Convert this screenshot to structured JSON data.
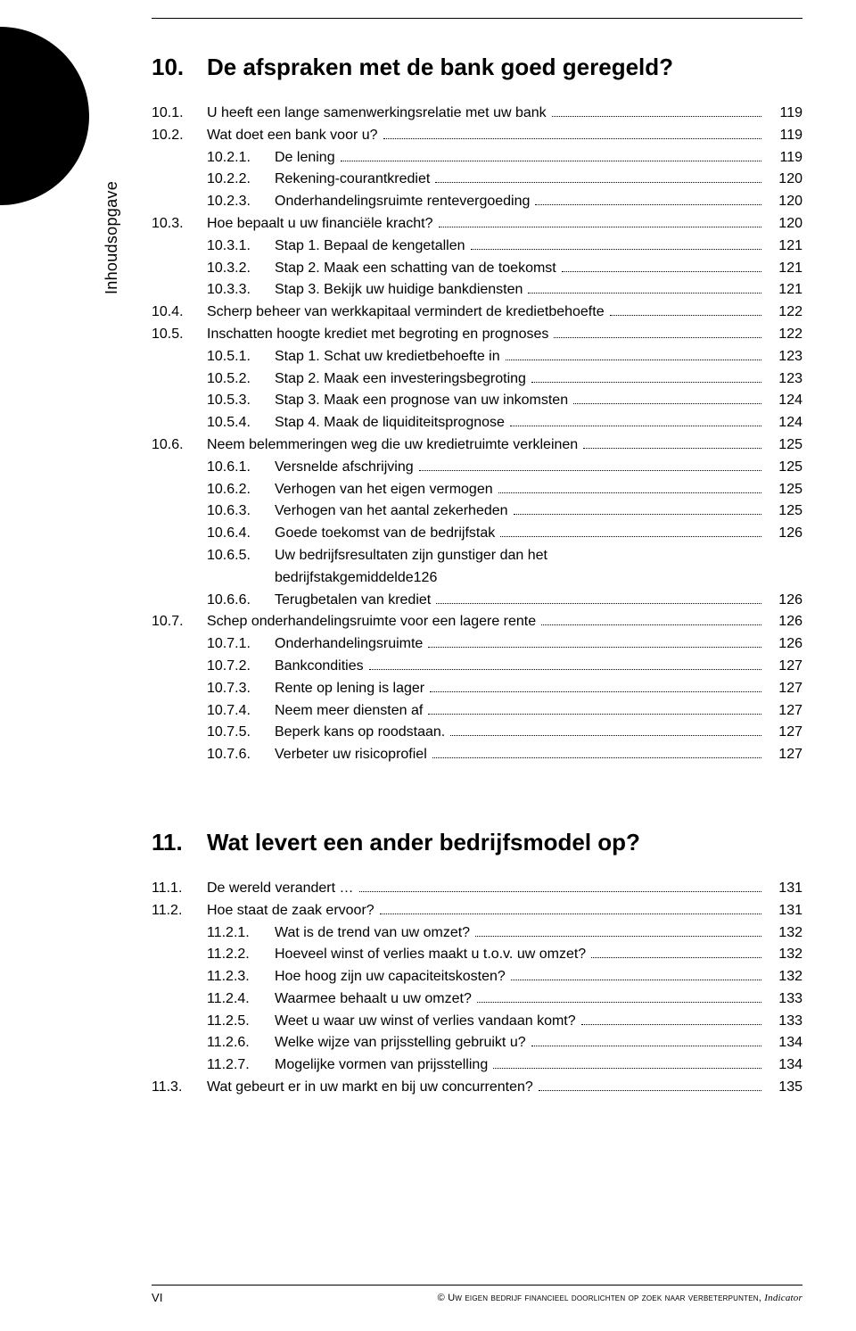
{
  "sideLabel": "Inhoudsopgave",
  "footer": {
    "pageNum": "VI",
    "copyright": "© Uw eigen bedrijf financieel doorlichten op zoek naar verbeterpunten,",
    "publisher": "Indicator"
  },
  "chapters": [
    {
      "num": "10.",
      "title": "De afspraken met de bank goed geregeld?",
      "entries": [
        {
          "lvl": 1,
          "num": "10.1.",
          "text": "U heeft een lange samenwerkingsrelatie met uw bank",
          "page": "119"
        },
        {
          "lvl": 1,
          "num": "10.2.",
          "text": "Wat doet een bank voor u?",
          "page": "119"
        },
        {
          "lvl": 2,
          "num": "10.2.1.",
          "text": "De lening",
          "page": "119"
        },
        {
          "lvl": 2,
          "num": "10.2.2.",
          "text": "Rekening-courantkrediet",
          "page": "120"
        },
        {
          "lvl": 2,
          "num": "10.2.3.",
          "text": "Onderhandelingsruimte rentevergoeding",
          "page": "120"
        },
        {
          "lvl": 1,
          "num": "10.3.",
          "text": "Hoe bepaalt u uw financiële kracht?",
          "page": "120"
        },
        {
          "lvl": 2,
          "num": "10.3.1.",
          "text": "Stap 1. Bepaal de kengetallen",
          "page": "121"
        },
        {
          "lvl": 2,
          "num": "10.3.2.",
          "text": "Stap 2. Maak een schatting van de toekomst",
          "page": "121"
        },
        {
          "lvl": 2,
          "num": "10.3.3.",
          "text": "Stap 3. Bekijk uw huidige bankdiensten",
          "page": "121"
        },
        {
          "lvl": 1,
          "num": "10.4.",
          "text": "Scherp beheer van werkkapitaal vermindert de kredietbehoefte",
          "page": "122"
        },
        {
          "lvl": 1,
          "num": "10.5.",
          "text": "Inschatten hoogte krediet met begroting en prognoses",
          "page": "122"
        },
        {
          "lvl": 2,
          "num": "10.5.1.",
          "text": "Stap 1. Schat uw kredietbehoefte in",
          "page": "123"
        },
        {
          "lvl": 2,
          "num": "10.5.2.",
          "text": "Stap 2. Maak een investeringsbegroting",
          "page": "123"
        },
        {
          "lvl": 2,
          "num": "10.5.3.",
          "text": "Stap 3. Maak een prognose van uw inkomsten",
          "page": "124"
        },
        {
          "lvl": 2,
          "num": "10.5.4.",
          "text": "Stap 4. Maak de liquiditeitsprognose",
          "page": "124"
        },
        {
          "lvl": 1,
          "num": "10.6.",
          "text": "Neem belemmeringen weg die uw kredietruimte verkleinen",
          "page": "125"
        },
        {
          "lvl": 2,
          "num": "10.6.1.",
          "text": "Versnelde afschrijving",
          "page": "125"
        },
        {
          "lvl": 2,
          "num": "10.6.2.",
          "text": "Verhogen van het eigen vermogen",
          "page": "125"
        },
        {
          "lvl": 2,
          "num": "10.6.3.",
          "text": "Verhogen van het aantal zekerheden",
          "page": "125"
        },
        {
          "lvl": 2,
          "num": "10.6.4.",
          "text": "Goede toekomst van de bedrijfstak",
          "page": "126"
        },
        {
          "lvl": 2,
          "num": "10.6.5.",
          "text": "Uw bedrijfsresultaten zijn gunstiger dan het",
          "cont": "bedrijfstakgemiddelde",
          "page": "126"
        },
        {
          "lvl": 2,
          "num": "10.6.6.",
          "text": "Terugbetalen van krediet",
          "page": "126"
        },
        {
          "lvl": 1,
          "num": "10.7.",
          "text": "Schep onderhandelingsruimte voor een lagere rente",
          "page": "126"
        },
        {
          "lvl": 2,
          "num": "10.7.1.",
          "text": "Onderhandelingsruimte",
          "page": "126"
        },
        {
          "lvl": 2,
          "num": "10.7.2.",
          "text": "Bankcondities",
          "page": "127"
        },
        {
          "lvl": 2,
          "num": "10.7.3.",
          "text": "Rente op lening is lager",
          "page": "127"
        },
        {
          "lvl": 2,
          "num": "10.7.4.",
          "text": "Neem meer diensten af",
          "page": "127"
        },
        {
          "lvl": 2,
          "num": "10.7.5.",
          "text": "Beperk kans op roodstaan.",
          "page": "127"
        },
        {
          "lvl": 2,
          "num": "10.7.6.",
          "text": "Verbeter uw risicoprofiel",
          "page": "127"
        }
      ]
    },
    {
      "num": "11.",
      "title": "Wat levert een ander bedrijfsmodel op?",
      "entries": [
        {
          "lvl": 1,
          "num": "11.1.",
          "text": "De wereld verandert …",
          "page": "131"
        },
        {
          "lvl": 1,
          "num": "11.2.",
          "text": "Hoe staat de zaak ervoor?",
          "page": "131"
        },
        {
          "lvl": 2,
          "num": "11.2.1.",
          "text": "Wat is de trend van uw omzet?",
          "page": "132"
        },
        {
          "lvl": 2,
          "num": "11.2.2.",
          "text": "Hoeveel winst of verlies maakt u t.o.v. uw omzet?",
          "page": "132"
        },
        {
          "lvl": 2,
          "num": "11.2.3.",
          "text": "Hoe hoog zijn uw capaciteitskosten?",
          "page": "132"
        },
        {
          "lvl": 2,
          "num": "11.2.4.",
          "text": "Waarmee behaalt u uw omzet?",
          "page": "133"
        },
        {
          "lvl": 2,
          "num": "11.2.5.",
          "text": "Weet u waar uw winst of verlies vandaan komt?",
          "page": "133"
        },
        {
          "lvl": 2,
          "num": "11.2.6.",
          "text": "Welke wijze van prijsstelling gebruikt u?",
          "page": "134"
        },
        {
          "lvl": 2,
          "num": "11.2.7.",
          "text": "Mogelijke vormen van prijsstelling",
          "page": "134"
        },
        {
          "lvl": 1,
          "num": "11.3.",
          "text": "Wat gebeurt er in uw markt en bij uw concurrenten?",
          "page": "135"
        }
      ]
    }
  ]
}
